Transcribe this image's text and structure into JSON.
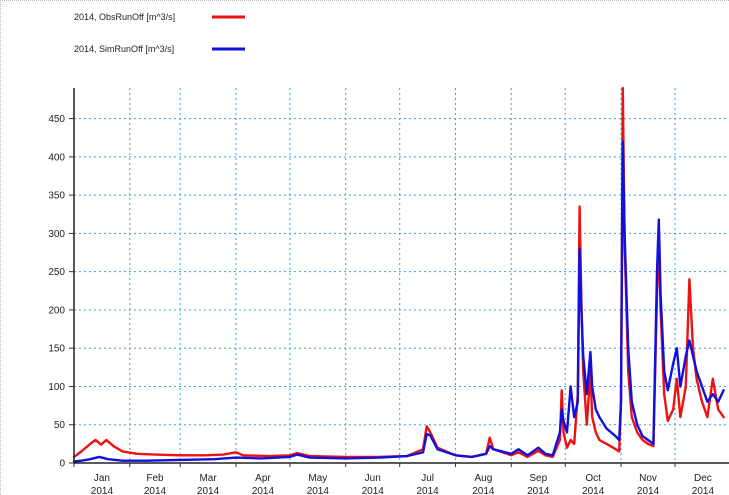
{
  "chart_data": {
    "type": "line",
    "title": "",
    "xlabel": "",
    "ylabel": "",
    "ylim": [
      0,
      490
    ],
    "yticks": [
      0,
      50,
      100,
      150,
      200,
      250,
      300,
      350,
      400,
      450
    ],
    "x_axis": {
      "months": [
        {
          "label": "Jan",
          "year": "2014"
        },
        {
          "label": "Feb",
          "year": "2014"
        },
        {
          "label": "Mar",
          "year": "2014"
        },
        {
          "label": "Apr",
          "year": "2014"
        },
        {
          "label": "May",
          "year": "2014"
        },
        {
          "label": "Jun",
          "year": "2014"
        },
        {
          "label": "Jul",
          "year": "2014"
        },
        {
          "label": "Aug",
          "year": "2014"
        },
        {
          "label": "Sep",
          "year": "2014"
        },
        {
          "label": "Oct",
          "year": "2014"
        },
        {
          "label": "Nov",
          "year": "2014"
        },
        {
          "label": "Dec",
          "year": "2014"
        }
      ]
    },
    "grid": true,
    "legend_position": "top-left",
    "series": [
      {
        "name": "2014, ObsRunOff [m^3/s]",
        "color": "#ee1111",
        "points": [
          [
            "2014-01-01",
            8
          ],
          [
            "2014-01-05",
            15
          ],
          [
            "2014-01-10",
            25
          ],
          [
            "2014-01-13",
            30
          ],
          [
            "2014-01-16",
            24
          ],
          [
            "2014-01-19",
            30
          ],
          [
            "2014-01-23",
            22
          ],
          [
            "2014-01-28",
            15
          ],
          [
            "2014-02-05",
            12
          ],
          [
            "2014-02-15",
            11
          ],
          [
            "2014-03-01",
            10
          ],
          [
            "2014-03-15",
            10
          ],
          [
            "2014-03-25",
            11
          ],
          [
            "2014-04-01",
            14
          ],
          [
            "2014-04-05",
            10
          ],
          [
            "2014-04-20",
            9
          ],
          [
            "2014-05-01",
            10
          ],
          [
            "2014-05-05",
            13
          ],
          [
            "2014-05-12",
            9
          ],
          [
            "2014-06-01",
            8
          ],
          [
            "2014-06-20",
            8
          ],
          [
            "2014-07-05",
            9
          ],
          [
            "2014-07-14",
            18
          ],
          [
            "2014-07-16",
            48
          ],
          [
            "2014-07-18",
            40
          ],
          [
            "2014-07-22",
            20
          ],
          [
            "2014-08-01",
            10
          ],
          [
            "2014-08-10",
            8
          ],
          [
            "2014-08-18",
            12
          ],
          [
            "2014-08-20",
            33
          ],
          [
            "2014-08-22",
            18
          ],
          [
            "2014-09-01",
            10
          ],
          [
            "2014-09-05",
            14
          ],
          [
            "2014-09-10",
            8
          ],
          [
            "2014-09-16",
            16
          ],
          [
            "2014-09-20",
            10
          ],
          [
            "2014-09-24",
            8
          ],
          [
            "2014-09-28",
            30
          ],
          [
            "2014-09-29",
            95
          ],
          [
            "2014-09-30",
            40
          ],
          [
            "2014-10-02",
            20
          ],
          [
            "2014-10-04",
            30
          ],
          [
            "2014-10-06",
            25
          ],
          [
            "2014-10-08",
            90
          ],
          [
            "2014-10-09",
            335
          ],
          [
            "2014-10-10",
            210
          ],
          [
            "2014-10-11",
            120
          ],
          [
            "2014-10-13",
            50
          ],
          [
            "2014-10-15",
            120
          ],
          [
            "2014-10-16",
            60
          ],
          [
            "2014-10-18",
            40
          ],
          [
            "2014-10-20",
            30
          ],
          [
            "2014-10-24",
            25
          ],
          [
            "2014-10-29",
            18
          ],
          [
            "2014-10-31",
            15
          ],
          [
            "2014-11-01",
            80
          ],
          [
            "2014-11-02",
            490
          ],
          [
            "2014-11-03",
            290
          ],
          [
            "2014-11-05",
            120
          ],
          [
            "2014-11-07",
            60
          ],
          [
            "2014-11-10",
            40
          ],
          [
            "2014-11-13",
            30
          ],
          [
            "2014-11-16",
            25
          ],
          [
            "2014-11-19",
            22
          ],
          [
            "2014-11-21",
            220
          ],
          [
            "2014-11-22",
            300
          ],
          [
            "2014-11-23",
            200
          ],
          [
            "2014-11-25",
            90
          ],
          [
            "2014-11-27",
            55
          ],
          [
            "2014-11-30",
            70
          ],
          [
            "2014-12-02",
            110
          ],
          [
            "2014-12-04",
            60
          ],
          [
            "2014-12-07",
            100
          ],
          [
            "2014-12-09",
            240
          ],
          [
            "2014-12-11",
            150
          ],
          [
            "2014-12-13",
            110
          ],
          [
            "2014-12-16",
            80
          ],
          [
            "2014-12-19",
            60
          ],
          [
            "2014-12-22",
            110
          ],
          [
            "2014-12-25",
            70
          ],
          [
            "2014-12-28",
            60
          ]
        ]
      },
      {
        "name": "2014, SimRunOff [m^3/s]",
        "color": "#1111dd",
        "points": [
          [
            "2014-01-01",
            2
          ],
          [
            "2014-01-05",
            3
          ],
          [
            "2014-01-10",
            5
          ],
          [
            "2014-01-15",
            8
          ],
          [
            "2014-01-20",
            5
          ],
          [
            "2014-01-28",
            3
          ],
          [
            "2014-02-10",
            3
          ],
          [
            "2014-03-01",
            4
          ],
          [
            "2014-03-20",
            5
          ],
          [
            "2014-04-01",
            7
          ],
          [
            "2014-04-15",
            6
          ],
          [
            "2014-05-01",
            8
          ],
          [
            "2014-05-05",
            11
          ],
          [
            "2014-05-12",
            7
          ],
          [
            "2014-06-01",
            6
          ],
          [
            "2014-06-20",
            7
          ],
          [
            "2014-07-05",
            9
          ],
          [
            "2014-07-14",
            14
          ],
          [
            "2014-07-16",
            38
          ],
          [
            "2014-07-18",
            36
          ],
          [
            "2014-07-22",
            18
          ],
          [
            "2014-08-01",
            10
          ],
          [
            "2014-08-10",
            8
          ],
          [
            "2014-08-18",
            12
          ],
          [
            "2014-08-20",
            22
          ],
          [
            "2014-08-22",
            18
          ],
          [
            "2014-09-01",
            12
          ],
          [
            "2014-09-05",
            18
          ],
          [
            "2014-09-10",
            10
          ],
          [
            "2014-09-16",
            20
          ],
          [
            "2014-09-20",
            12
          ],
          [
            "2014-09-24",
            10
          ],
          [
            "2014-09-28",
            40
          ],
          [
            "2014-09-29",
            70
          ],
          [
            "2014-09-30",
            55
          ],
          [
            "2014-10-02",
            40
          ],
          [
            "2014-10-04",
            100
          ],
          [
            "2014-10-06",
            60
          ],
          [
            "2014-10-08",
            80
          ],
          [
            "2014-10-09",
            280
          ],
          [
            "2014-10-10",
            200
          ],
          [
            "2014-10-11",
            140
          ],
          [
            "2014-10-13",
            90
          ],
          [
            "2014-10-15",
            145
          ],
          [
            "2014-10-16",
            100
          ],
          [
            "2014-10-18",
            70
          ],
          [
            "2014-10-20",
            60
          ],
          [
            "2014-10-24",
            45
          ],
          [
            "2014-10-29",
            35
          ],
          [
            "2014-10-31",
            30
          ],
          [
            "2014-11-01",
            80
          ],
          [
            "2014-11-02",
            420
          ],
          [
            "2014-11-03",
            300
          ],
          [
            "2014-11-05",
            150
          ],
          [
            "2014-11-07",
            80
          ],
          [
            "2014-11-10",
            50
          ],
          [
            "2014-11-13",
            35
          ],
          [
            "2014-11-16",
            30
          ],
          [
            "2014-11-19",
            25
          ],
          [
            "2014-11-21",
            250
          ],
          [
            "2014-11-22",
            318
          ],
          [
            "2014-11-23",
            220
          ],
          [
            "2014-11-25",
            120
          ],
          [
            "2014-11-27",
            95
          ],
          [
            "2014-11-30",
            130
          ],
          [
            "2014-12-02",
            150
          ],
          [
            "2014-12-04",
            100
          ],
          [
            "2014-12-07",
            140
          ],
          [
            "2014-12-09",
            160
          ],
          [
            "2014-12-11",
            140
          ],
          [
            "2014-12-13",
            120
          ],
          [
            "2014-12-16",
            100
          ],
          [
            "2014-12-19",
            80
          ],
          [
            "2014-12-22",
            90
          ],
          [
            "2014-12-25",
            80
          ],
          [
            "2014-12-28",
            95
          ]
        ]
      }
    ]
  }
}
